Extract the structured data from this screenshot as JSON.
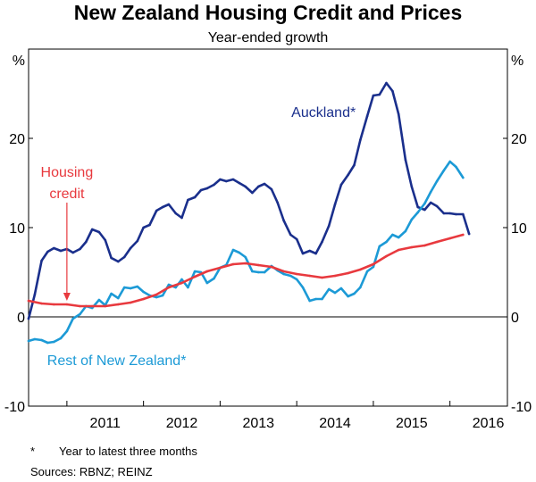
{
  "chart_data": {
    "type": "line",
    "title": "New Zealand Housing Credit and Prices",
    "subtitle": "Year-ended growth",
    "ylabel_left": "%",
    "ylabel_right": "%",
    "ylim": [
      -10,
      30
    ],
    "yticks": [
      -10,
      0,
      10,
      20
    ],
    "ytick_labels": [
      "-10",
      "0",
      "10",
      "20"
    ],
    "xlim": [
      2010.5,
      2016.75
    ],
    "x_year_ticks": [
      2011,
      2012,
      2013,
      2014,
      2015,
      2016,
      2017
    ],
    "x_labels": [
      {
        "text": "2011",
        "x": 2011.5
      },
      {
        "text": "2012",
        "x": 2012.5
      },
      {
        "text": "2013",
        "x": 2013.5
      },
      {
        "text": "2014",
        "x": 2014.5
      },
      {
        "text": "2015",
        "x": 2015.5
      },
      {
        "text": "2016",
        "x": 2016.5
      }
    ],
    "grid": false,
    "zero_line": true,
    "series": [
      {
        "name": "Auckland*",
        "color": "#1a2f8c",
        "points": [
          [
            2010.5,
            -0.2
          ],
          [
            2010.58,
            2.5
          ],
          [
            2010.67,
            6.3
          ],
          [
            2010.75,
            7.3
          ],
          [
            2010.83,
            7.7
          ],
          [
            2010.92,
            7.4
          ],
          [
            2011.0,
            7.6
          ],
          [
            2011.08,
            7.2
          ],
          [
            2011.17,
            7.6
          ],
          [
            2011.25,
            8.4
          ],
          [
            2011.33,
            9.8
          ],
          [
            2011.42,
            9.5
          ],
          [
            2011.5,
            8.6
          ],
          [
            2011.58,
            6.6
          ],
          [
            2011.67,
            6.2
          ],
          [
            2011.75,
            6.7
          ],
          [
            2011.83,
            7.7
          ],
          [
            2011.92,
            8.5
          ],
          [
            2012.0,
            10.0
          ],
          [
            2012.08,
            10.3
          ],
          [
            2012.17,
            11.9
          ],
          [
            2012.25,
            12.3
          ],
          [
            2012.33,
            12.6
          ],
          [
            2012.42,
            11.6
          ],
          [
            2012.5,
            11.1
          ],
          [
            2012.58,
            13.1
          ],
          [
            2012.67,
            13.4
          ],
          [
            2012.75,
            14.2
          ],
          [
            2012.83,
            14.4
          ],
          [
            2012.92,
            14.8
          ],
          [
            2013.0,
            15.4
          ],
          [
            2013.08,
            15.2
          ],
          [
            2013.17,
            15.4
          ],
          [
            2013.25,
            15.0
          ],
          [
            2013.33,
            14.6
          ],
          [
            2013.42,
            13.9
          ],
          [
            2013.5,
            14.6
          ],
          [
            2013.58,
            14.9
          ],
          [
            2013.67,
            14.3
          ],
          [
            2013.75,
            12.8
          ],
          [
            2013.83,
            10.8
          ],
          [
            2013.92,
            9.2
          ],
          [
            2014.0,
            8.7
          ],
          [
            2014.08,
            7.1
          ],
          [
            2014.17,
            7.4
          ],
          [
            2014.25,
            7.1
          ],
          [
            2014.33,
            8.4
          ],
          [
            2014.42,
            10.2
          ],
          [
            2014.5,
            12.6
          ],
          [
            2014.58,
            14.8
          ],
          [
            2014.67,
            15.9
          ],
          [
            2014.75,
            17.0
          ],
          [
            2014.83,
            19.8
          ],
          [
            2014.92,
            22.5
          ],
          [
            2015.0,
            24.8
          ],
          [
            2015.08,
            24.9
          ],
          [
            2015.17,
            26.2
          ],
          [
            2015.25,
            25.3
          ],
          [
            2015.33,
            22.7
          ],
          [
            2015.42,
            17.6
          ],
          [
            2015.5,
            14.6
          ],
          [
            2015.58,
            12.3
          ],
          [
            2015.67,
            12.0
          ],
          [
            2015.75,
            12.8
          ],
          [
            2015.83,
            12.4
          ],
          [
            2015.92,
            11.6
          ],
          [
            2016.0,
            11.6
          ],
          [
            2016.08,
            11.5
          ],
          [
            2016.17,
            11.5
          ],
          [
            2016.25,
            9.3
          ]
        ]
      },
      {
        "name": "Rest of New Zealand*",
        "color": "#1c9ad6",
        "points": [
          [
            2010.5,
            -2.7
          ],
          [
            2010.58,
            -2.5
          ],
          [
            2010.67,
            -2.6
          ],
          [
            2010.75,
            -2.9
          ],
          [
            2010.83,
            -2.8
          ],
          [
            2010.92,
            -2.4
          ],
          [
            2011.0,
            -1.6
          ],
          [
            2011.08,
            -0.2
          ],
          [
            2011.17,
            0.3
          ],
          [
            2011.25,
            1.2
          ],
          [
            2011.33,
            1.0
          ],
          [
            2011.42,
            1.9
          ],
          [
            2011.5,
            1.3
          ],
          [
            2011.58,
            2.6
          ],
          [
            2011.67,
            2.1
          ],
          [
            2011.75,
            3.3
          ],
          [
            2011.83,
            3.2
          ],
          [
            2011.92,
            3.4
          ],
          [
            2012.0,
            2.8
          ],
          [
            2012.08,
            2.4
          ],
          [
            2012.17,
            2.2
          ],
          [
            2012.25,
            2.4
          ],
          [
            2012.33,
            3.6
          ],
          [
            2012.42,
            3.3
          ],
          [
            2012.5,
            4.2
          ],
          [
            2012.58,
            3.3
          ],
          [
            2012.67,
            5.1
          ],
          [
            2012.75,
            5.0
          ],
          [
            2012.83,
            3.8
          ],
          [
            2012.92,
            4.3
          ],
          [
            2013.0,
            5.5
          ],
          [
            2013.08,
            5.8
          ],
          [
            2013.17,
            7.5
          ],
          [
            2013.25,
            7.2
          ],
          [
            2013.33,
            6.7
          ],
          [
            2013.42,
            5.1
          ],
          [
            2013.5,
            5.0
          ],
          [
            2013.58,
            5.0
          ],
          [
            2013.67,
            5.7
          ],
          [
            2013.75,
            5.2
          ],
          [
            2013.83,
            4.8
          ],
          [
            2013.92,
            4.6
          ],
          [
            2014.0,
            4.2
          ],
          [
            2014.08,
            3.3
          ],
          [
            2014.17,
            1.8
          ],
          [
            2014.25,
            2.0
          ],
          [
            2014.33,
            2.0
          ],
          [
            2014.42,
            3.1
          ],
          [
            2014.5,
            2.7
          ],
          [
            2014.58,
            3.2
          ],
          [
            2014.67,
            2.3
          ],
          [
            2014.75,
            2.6
          ],
          [
            2014.83,
            3.3
          ],
          [
            2014.92,
            5.1
          ],
          [
            2015.0,
            5.6
          ],
          [
            2015.08,
            7.9
          ],
          [
            2015.17,
            8.4
          ],
          [
            2015.25,
            9.2
          ],
          [
            2015.33,
            8.9
          ],
          [
            2015.42,
            9.6
          ],
          [
            2015.5,
            10.9
          ],
          [
            2015.58,
            11.7
          ],
          [
            2015.67,
            12.7
          ],
          [
            2015.75,
            14.0
          ],
          [
            2015.83,
            15.2
          ],
          [
            2015.92,
            16.4
          ],
          [
            2016.0,
            17.4
          ],
          [
            2016.08,
            16.8
          ],
          [
            2016.17,
            15.6
          ]
        ]
      },
      {
        "name": "Housing credit",
        "color": "#e8393e",
        "points": [
          [
            2010.5,
            1.8
          ],
          [
            2010.67,
            1.5
          ],
          [
            2010.83,
            1.4
          ],
          [
            2011.0,
            1.4
          ],
          [
            2011.17,
            1.2
          ],
          [
            2011.33,
            1.2
          ],
          [
            2011.5,
            1.2
          ],
          [
            2011.67,
            1.4
          ],
          [
            2011.83,
            1.6
          ],
          [
            2012.0,
            2.0
          ],
          [
            2012.17,
            2.5
          ],
          [
            2012.33,
            3.3
          ],
          [
            2012.5,
            3.8
          ],
          [
            2012.67,
            4.5
          ],
          [
            2012.83,
            5.1
          ],
          [
            2013.0,
            5.5
          ],
          [
            2013.17,
            5.9
          ],
          [
            2013.33,
            6.0
          ],
          [
            2013.5,
            5.8
          ],
          [
            2013.67,
            5.6
          ],
          [
            2013.83,
            5.1
          ],
          [
            2014.0,
            4.8
          ],
          [
            2014.17,
            4.6
          ],
          [
            2014.33,
            4.4
          ],
          [
            2014.5,
            4.6
          ],
          [
            2014.67,
            4.9
          ],
          [
            2014.83,
            5.3
          ],
          [
            2015.0,
            5.9
          ],
          [
            2015.17,
            6.8
          ],
          [
            2015.33,
            7.5
          ],
          [
            2015.5,
            7.8
          ],
          [
            2015.67,
            8.0
          ],
          [
            2015.83,
            8.4
          ],
          [
            2016.0,
            8.8
          ],
          [
            2016.17,
            9.2
          ]
        ]
      }
    ],
    "annotations": [
      {
        "text": "Auckland*",
        "series": 0,
        "x": 2014.35,
        "y": 23.0
      },
      {
        "text": "Housing",
        "series": 2,
        "x": 2011.0,
        "y": 16.3
      },
      {
        "text": "credit",
        "series": 2,
        "x": 2011.0,
        "y": 13.9
      },
      {
        "text": "Rest of New Zealand*",
        "series": 1,
        "x": 2011.65,
        "y": -4.8
      }
    ],
    "arrow": {
      "series": 2,
      "from": [
        2011.0,
        12.8
      ],
      "to": [
        2011.0,
        1.8
      ]
    }
  },
  "footnote": {
    "marker": "*",
    "text": "Year to latest three months"
  },
  "sources": "Sources:   RBNZ; REINZ"
}
